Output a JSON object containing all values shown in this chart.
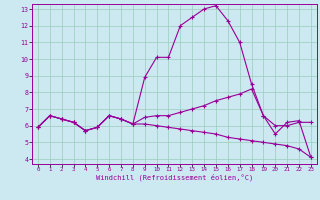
{
  "xlabel": "Windchill (Refroidissement éolien,°C)",
  "ylabel": "",
  "bg_color": "#cce8f0",
  "line_color": "#990099",
  "grid_color": "#99ccbb",
  "xlim": [
    -0.5,
    23.5
  ],
  "ylim": [
    3.7,
    13.3
  ],
  "yticks": [
    4,
    5,
    6,
    7,
    8,
    9,
    10,
    11,
    12,
    13
  ],
  "xticks": [
    0,
    1,
    2,
    3,
    4,
    5,
    6,
    7,
    8,
    9,
    10,
    11,
    12,
    13,
    14,
    15,
    16,
    17,
    18,
    19,
    20,
    21,
    22,
    23
  ],
  "line1_x": [
    0,
    1,
    2,
    3,
    4,
    5,
    6,
    7,
    8,
    9,
    10,
    11,
    12,
    13,
    14,
    15,
    16,
    17,
    18,
    19,
    20,
    21,
    22,
    23
  ],
  "line1_y": [
    5.9,
    6.6,
    6.4,
    6.2,
    5.7,
    5.9,
    6.6,
    6.4,
    6.1,
    8.9,
    10.1,
    10.1,
    12.0,
    12.5,
    13.0,
    13.2,
    12.3,
    11.0,
    8.5,
    6.6,
    5.5,
    6.2,
    6.3,
    4.1
  ],
  "line2_x": [
    0,
    1,
    2,
    3,
    4,
    5,
    6,
    7,
    8,
    9,
    10,
    11,
    12,
    13,
    14,
    15,
    16,
    17,
    18,
    19,
    20,
    21,
    22,
    23
  ],
  "line2_y": [
    5.9,
    6.6,
    6.4,
    6.2,
    5.7,
    5.9,
    6.6,
    6.4,
    6.1,
    6.5,
    6.6,
    6.6,
    6.8,
    7.0,
    7.2,
    7.5,
    7.7,
    7.9,
    8.2,
    6.6,
    6.0,
    6.0,
    6.2,
    6.2
  ],
  "line3_x": [
    0,
    1,
    2,
    3,
    4,
    5,
    6,
    7,
    8,
    9,
    10,
    11,
    12,
    13,
    14,
    15,
    16,
    17,
    18,
    19,
    20,
    21,
    22,
    23
  ],
  "line3_y": [
    5.9,
    6.6,
    6.4,
    6.2,
    5.7,
    5.9,
    6.6,
    6.4,
    6.1,
    6.1,
    6.0,
    5.9,
    5.8,
    5.7,
    5.6,
    5.5,
    5.3,
    5.2,
    5.1,
    5.0,
    4.9,
    4.8,
    4.6,
    4.1
  ]
}
